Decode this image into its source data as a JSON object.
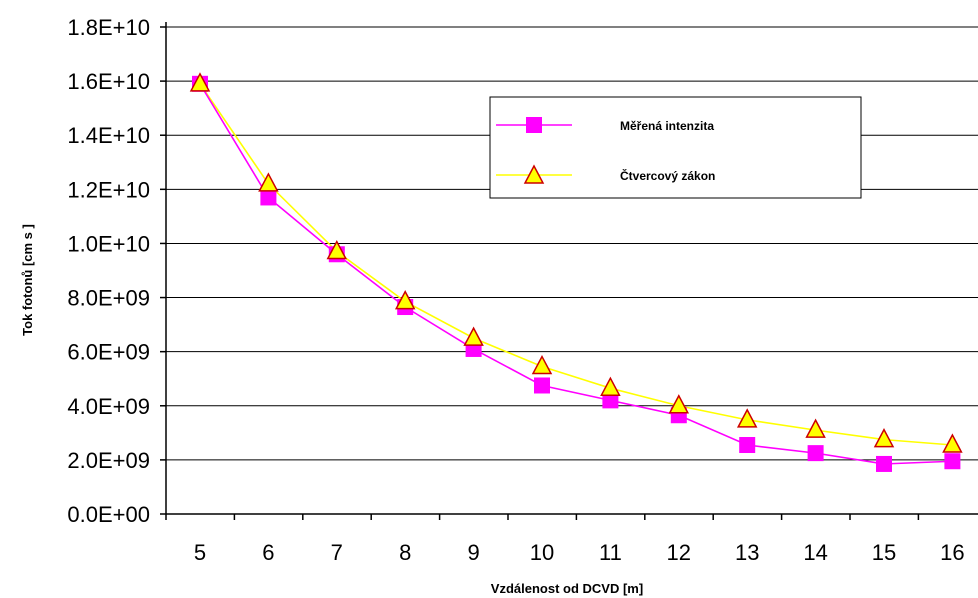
{
  "chart_data": {
    "type": "line",
    "xlabel": "Vzdálenost od DCVD [m]",
    "ylabel": "Tok fotonů [cm   s  ]",
    "categories": [
      "5",
      "6",
      "7",
      "8",
      "9",
      "10",
      "11",
      "12",
      "13",
      "14",
      "15",
      "16"
    ],
    "x": [
      5,
      6,
      7,
      8,
      9,
      10,
      11,
      12,
      13,
      14,
      15,
      16
    ],
    "ylim": [
      0,
      18000000000
    ],
    "yticks": [
      "0.0E+00",
      "2.0E+09",
      "4.0E+09",
      "6.0E+09",
      "8.0E+09",
      "1.0E+10",
      "1.2E+10",
      "1.4E+10",
      "1.6E+10",
      "1.8E+10"
    ],
    "grid": "horizontal",
    "legend_position": "upper-right",
    "series": [
      {
        "name": "Měřená intenzita",
        "marker": "square",
        "color": "#ff00ff",
        "values": [
          15900000000,
          11700000000,
          9600000000,
          7650000000,
          6100000000,
          4750000000,
          4200000000,
          3650000000,
          2550000000,
          2250000000,
          1850000000,
          1950000000
        ]
      },
      {
        "name": "Čtvercový zákon",
        "marker": "triangle",
        "color": "#ffff00",
        "marker_fill": "#ffff00",
        "marker_edge": "#cc0000",
        "values": [
          15900000000,
          12200000000,
          9700000000,
          7850000000,
          6500000000,
          5450000000,
          4650000000,
          4000000000,
          3480000000,
          3100000000,
          2750000000,
          2550000000
        ]
      }
    ]
  }
}
